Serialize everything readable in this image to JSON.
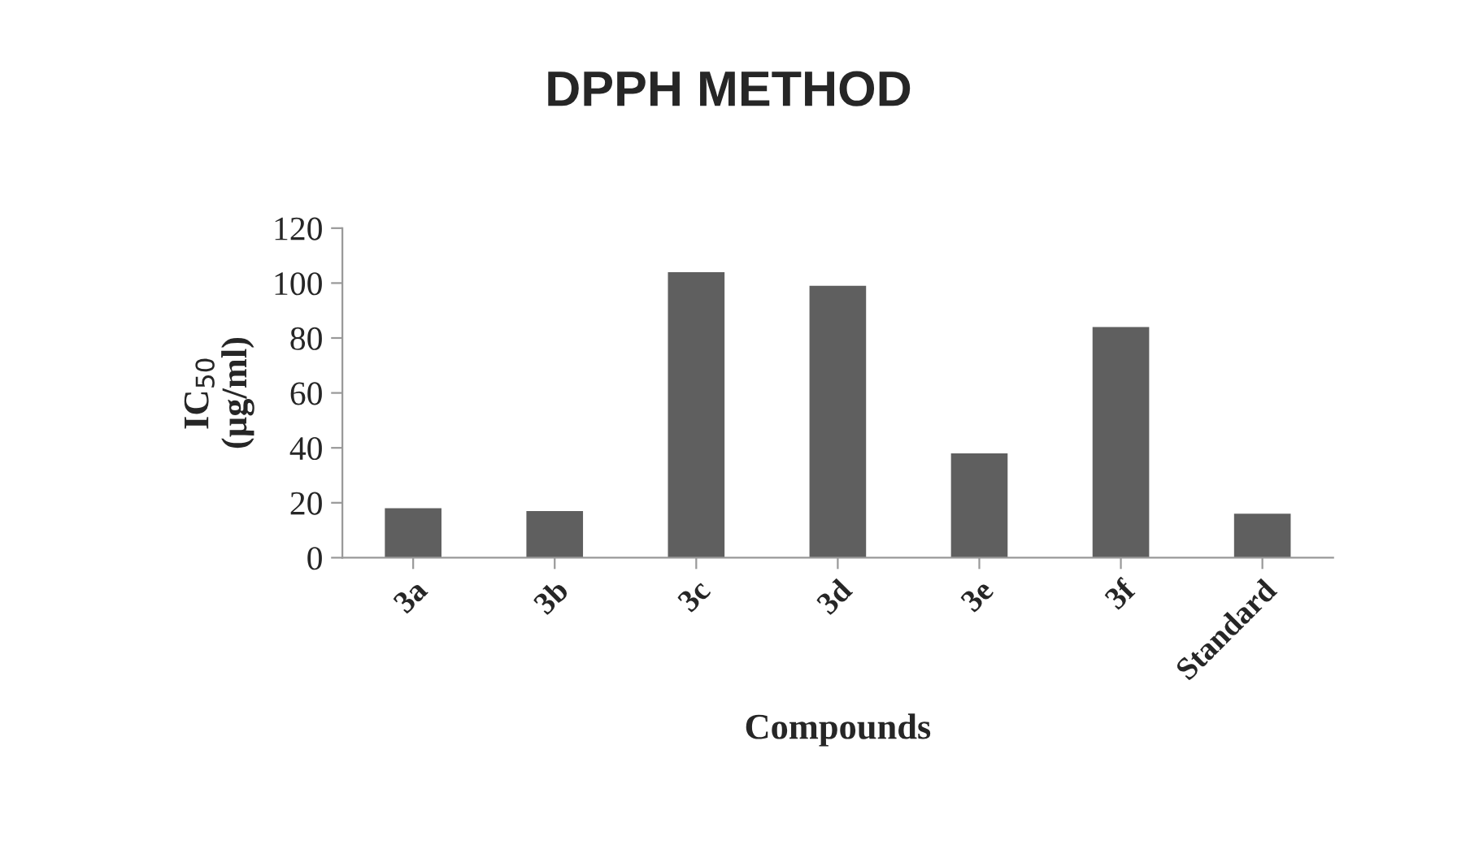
{
  "chart_data": {
    "type": "bar",
    "title": "DPPH METHOD",
    "xlabel": "Compounds",
    "ylabel": "IC$_{50}$\n(µg/ml)",
    "categories": [
      "3a",
      "3b",
      "3c",
      "3d",
      "3e",
      "3f",
      "Standard"
    ],
    "values": [
      18,
      17,
      104,
      99,
      38,
      84,
      16
    ],
    "color": "#5f5f5f",
    "ylim": [
      0,
      120
    ],
    "yticks": [
      0,
      20,
      40,
      60,
      80,
      100,
      120
    ],
    "grid": false
  }
}
